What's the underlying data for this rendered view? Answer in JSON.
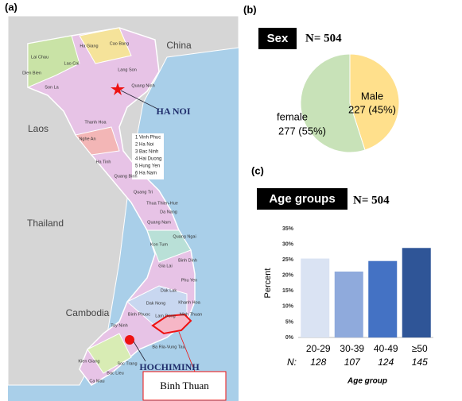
{
  "panel_labels": [
    "(a)",
    "(b)",
    "(c)"
  ],
  "map": {
    "countries": [
      "China",
      "Laos",
      "Thailand",
      "Cambodia"
    ],
    "cities": [
      "HA NOI",
      "HOCHIMINH"
    ],
    "callout": "Binh Thuan",
    "legend": [
      "1 Vinh Phuc",
      "2 Ha Noi",
      "3 Bac Ninh",
      "4 Hai Duong",
      "5 Hung Yen",
      "6 Ha Nam"
    ],
    "provinces": [
      "Lai Chau",
      "Dien Bien",
      "Son La",
      "Lao Cai",
      "Ha Giang",
      "Cao Bang",
      "Lang Son",
      "Quang Ninh",
      "Thanh Hoa",
      "Nghe An",
      "Ha Tinh",
      "Quang Binh",
      "Quang Tri",
      "Thua Thien-Hue",
      "Da Nang",
      "Quang Nam",
      "Quang Ngai",
      "Kon Tum",
      "Binh Dinh",
      "Gia Lai",
      "Phu Yen",
      "Dak Lak",
      "Khanh Hoa",
      "Dak Nong",
      "Lam Dong",
      "Ninh Thuan",
      "Binh Phuoc",
      "Tay Ninh",
      "Ba Ria-Vung Tau",
      "Kien Giang",
      "Ca Mau",
      "Bac Lieu",
      "Soc Trang"
    ]
  },
  "chart_data": [
    {
      "type": "pie",
      "title": "Sex",
      "subtitle": "N= 504",
      "categories": [
        "Male",
        "female"
      ],
      "values": [
        227,
        277
      ],
      "value_labels": [
        "227 (45%)",
        "277 (55%)"
      ],
      "colors": [
        "#ffe08c",
        "#c8e2b8"
      ]
    },
    {
      "type": "bar",
      "title": "Age groups",
      "subtitle": "N= 504",
      "categories": [
        "20-29",
        "30-39",
        "40-49",
        "≥50"
      ],
      "values": [
        25.4,
        21.2,
        24.6,
        28.8
      ],
      "colors": [
        "#dae3f3",
        "#8faadc",
        "#4472c4",
        "#2f5597"
      ],
      "n_label": "N:",
      "counts": [
        128,
        107,
        124,
        145
      ],
      "ylabel": "Percent",
      "xlabel": "Age group",
      "ylim": [
        0,
        35
      ],
      "yticks": [
        {
          "value": 0,
          "label": "0%"
        },
        {
          "value": 5,
          "label": "5%"
        },
        {
          "value": 10,
          "label": "10%"
        },
        {
          "value": 15,
          "label": "15%"
        },
        {
          "value": 20,
          "label": "20%"
        },
        {
          "value": 25,
          "label": "25%"
        },
        {
          "value": 30,
          "label": "30%"
        },
        {
          "value": 35,
          "label": "35%"
        }
      ],
      "grid": false
    }
  ]
}
